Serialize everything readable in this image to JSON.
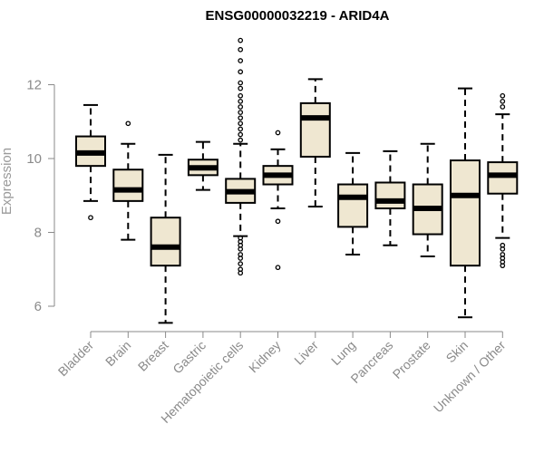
{
  "chart_data": {
    "type": "box",
    "title": "ENSG00000032219 - ARID4A",
    "ylabel": "Expression",
    "xlabel": "",
    "ylim": [
      5.5,
      13.4
    ],
    "yticks": [
      6,
      8,
      10,
      12
    ],
    "grid": false,
    "box_fill": "#EFE7D1",
    "box_stroke": "#000000",
    "categories": [
      "Bladder",
      "Brain",
      "Breast",
      "Gastric",
      "Hematopoietic cells",
      "Kidney",
      "Liver",
      "Lung",
      "Pancreas",
      "Prostate",
      "Skin",
      "Unknown / Other"
    ],
    "boxes": [
      {
        "category": "Bladder",
        "q1": 9.8,
        "median": 10.15,
        "q3": 10.6,
        "whisker_low": 8.85,
        "whisker_high": 11.45,
        "outliers": [
          8.4
        ]
      },
      {
        "category": "Brain",
        "q1": 8.85,
        "median": 9.15,
        "q3": 9.7,
        "whisker_low": 7.8,
        "whisker_high": 10.4,
        "outliers": [
          10.95
        ]
      },
      {
        "category": "Breast",
        "q1": 7.1,
        "median": 7.6,
        "q3": 8.4,
        "whisker_low": 5.55,
        "whisker_high": 10.1,
        "outliers": []
      },
      {
        "category": "Gastric",
        "q1": 9.55,
        "median": 9.75,
        "q3": 9.97,
        "whisker_low": 9.15,
        "whisker_high": 10.45,
        "outliers": []
      },
      {
        "category": "Hematopoietic cells",
        "q1": 8.8,
        "median": 9.1,
        "q3": 9.45,
        "whisker_low": 7.9,
        "whisker_high": 10.4,
        "outliers": [
          6.9,
          7.0,
          7.15,
          7.3,
          7.4,
          7.55,
          7.65,
          7.75,
          7.85,
          10.5,
          10.65,
          10.8,
          10.95,
          11.1,
          11.25,
          11.4,
          11.55,
          11.7,
          11.9,
          12.05,
          12.35,
          12.65,
          12.95,
          13.2
        ]
      },
      {
        "category": "Kidney",
        "q1": 9.3,
        "median": 9.55,
        "q3": 9.8,
        "whisker_low": 8.65,
        "whisker_high": 10.25,
        "outliers": [
          10.7,
          8.3,
          7.05
        ]
      },
      {
        "category": "Liver",
        "q1": 10.05,
        "median": 11.1,
        "q3": 11.5,
        "whisker_low": 8.7,
        "whisker_high": 12.15,
        "outliers": []
      },
      {
        "category": "Lung",
        "q1": 8.15,
        "median": 8.95,
        "q3": 9.3,
        "whisker_low": 7.4,
        "whisker_high": 10.15,
        "outliers": []
      },
      {
        "category": "Pancreas",
        "q1": 8.65,
        "median": 8.85,
        "q3": 9.35,
        "whisker_low": 7.65,
        "whisker_high": 10.2,
        "outliers": []
      },
      {
        "category": "Prostate",
        "q1": 7.95,
        "median": 8.65,
        "q3": 9.3,
        "whisker_low": 7.35,
        "whisker_high": 10.4,
        "outliers": []
      },
      {
        "category": "Skin",
        "q1": 7.1,
        "median": 9.0,
        "q3": 9.95,
        "whisker_low": 5.7,
        "whisker_high": 11.9,
        "outliers": []
      },
      {
        "category": "Unknown / Other",
        "q1": 9.05,
        "median": 9.55,
        "q3": 9.9,
        "whisker_low": 7.85,
        "whisker_high": 11.2,
        "outliers": [
          11.7,
          11.55,
          11.4,
          7.65,
          7.55,
          7.4,
          7.3,
          7.2,
          7.1
        ]
      }
    ]
  }
}
